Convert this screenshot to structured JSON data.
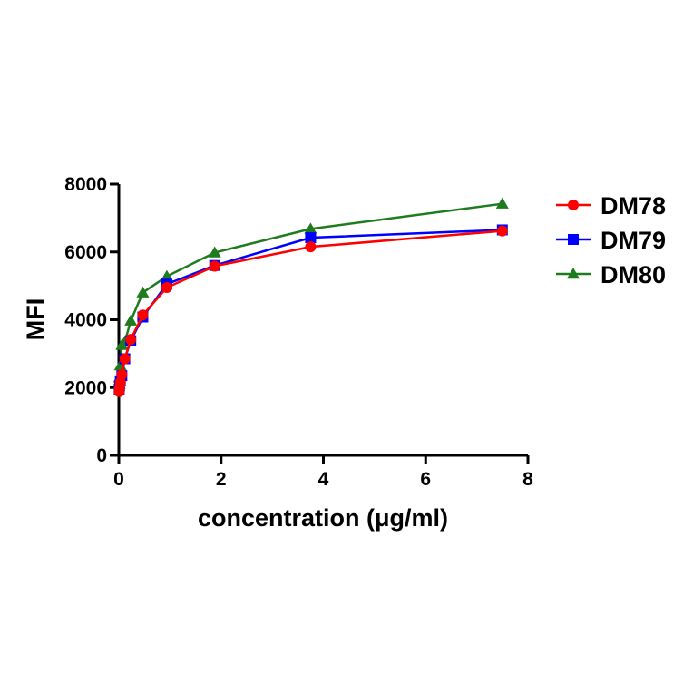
{
  "chart_data": {
    "type": "line",
    "title": "",
    "xlabel": "concentration (μg/ml)",
    "ylabel": "MFI",
    "xlim": [
      0,
      8
    ],
    "ylim": [
      0,
      8000
    ],
    "xticks": [
      "0",
      "2",
      "4",
      "6",
      "8"
    ],
    "yticks": [
      "0",
      "2000",
      "4000",
      "6000",
      "8000"
    ],
    "grid": false,
    "legend_position": "top-right",
    "x": [
      0.0073,
      0.0146,
      0.029,
      0.059,
      0.117,
      0.234,
      0.469,
      0.938,
      1.875,
      3.75,
      7.5
    ],
    "series": [
      {
        "name": "DM78",
        "color": "#ff0000",
        "marker": "circle",
        "values": [
          1880,
          1980,
          2150,
          2380,
          2850,
          3420,
          4140,
          4950,
          5580,
          6150,
          6620
        ]
      },
      {
        "name": "DM79",
        "color": "#0000ff",
        "marker": "square",
        "values": [
          1950,
          2050,
          2200,
          2350,
          2850,
          3380,
          4080,
          5050,
          5600,
          6420,
          6650
        ]
      },
      {
        "name": "DM80",
        "color": "#1e7b1e",
        "marker": "triangle",
        "values": [
          2100,
          2300,
          2650,
          3250,
          3350,
          3970,
          4800,
          5280,
          5980,
          6680,
          7420
        ]
      }
    ]
  }
}
